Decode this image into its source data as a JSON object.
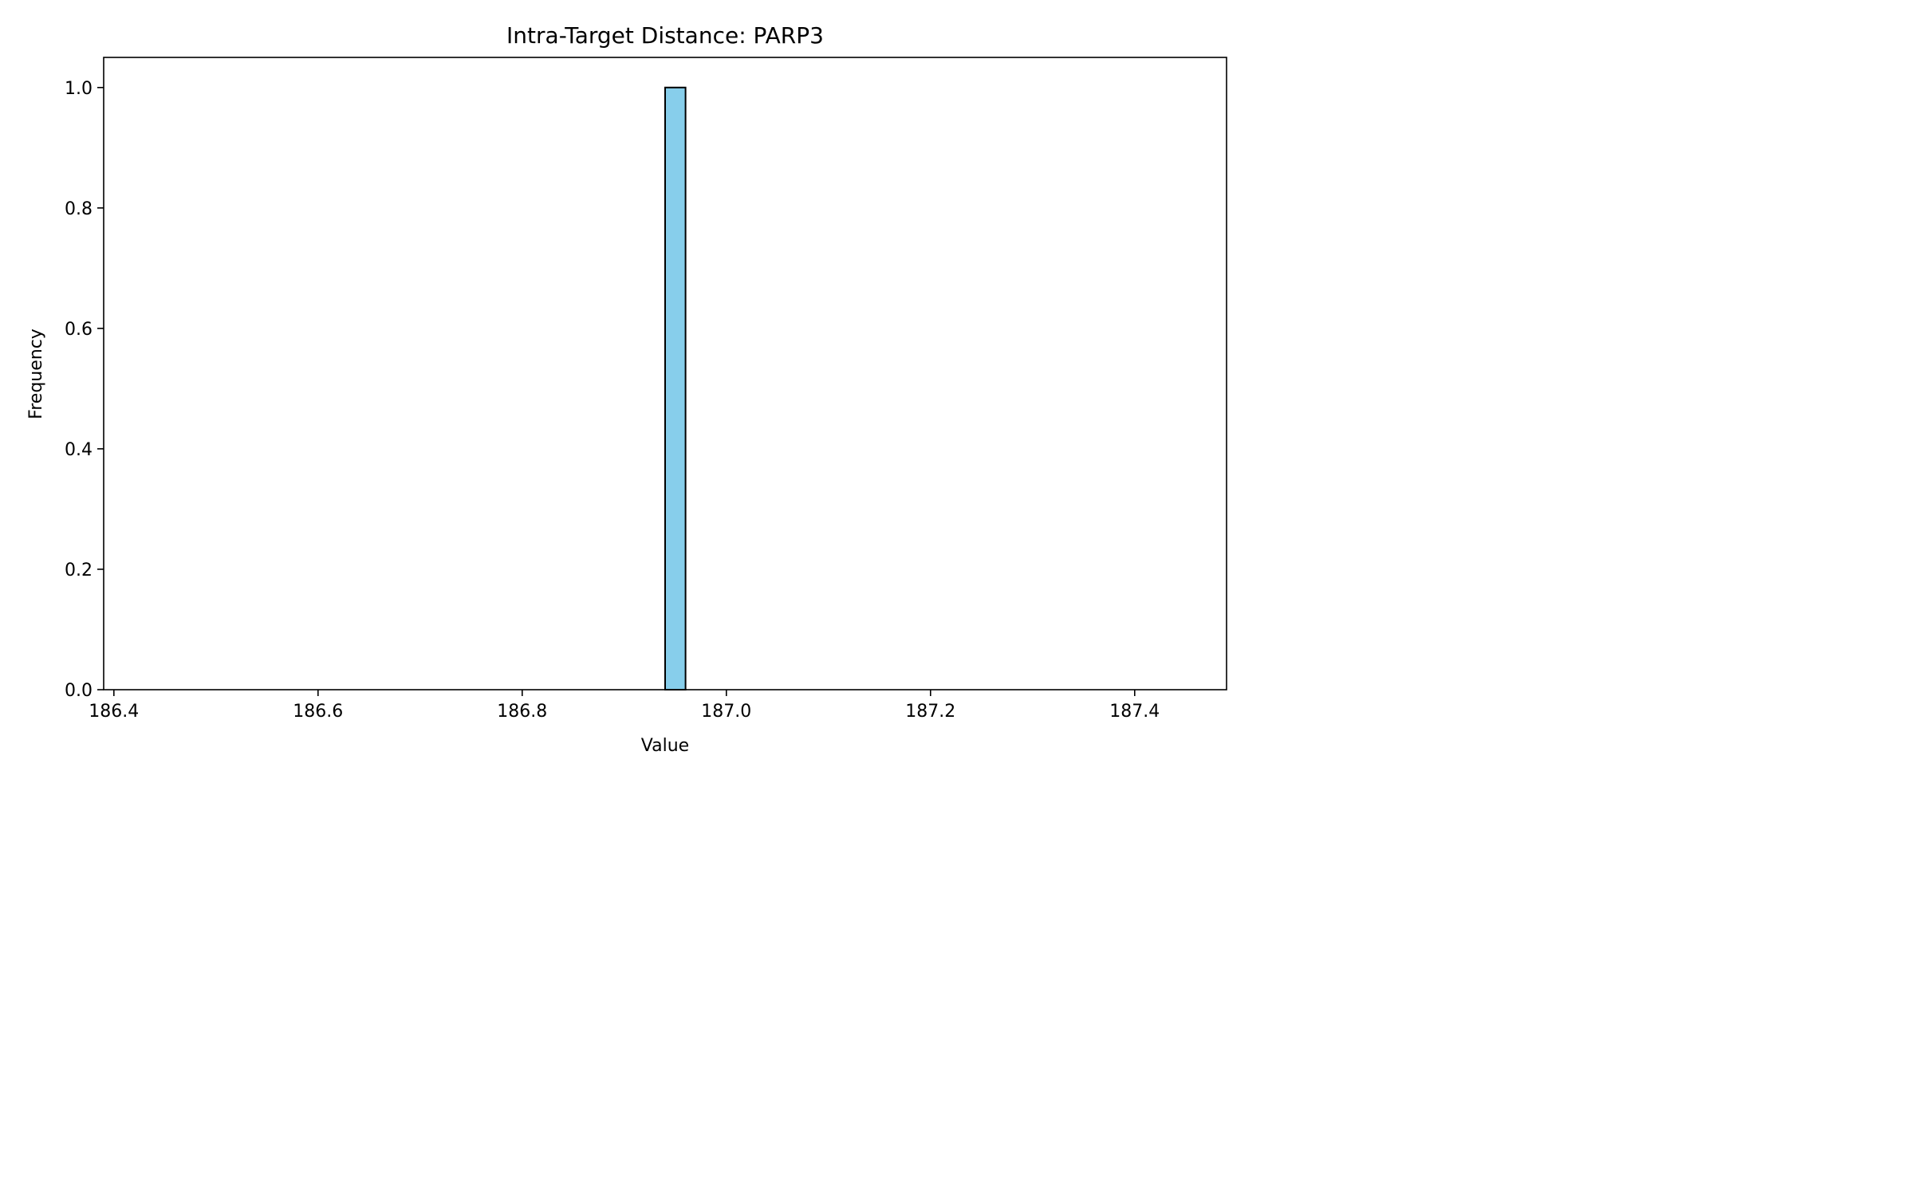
{
  "chart_data": {
    "type": "bar",
    "title": "Intra-Target Distance: PARP3",
    "xlabel": "Value",
    "ylabel": "Frequency",
    "xlim": [
      186.39,
      187.49
    ],
    "ylim": [
      0.0,
      1.05
    ],
    "xticks": [
      186.4,
      186.6,
      186.8,
      187.0,
      187.2,
      187.4
    ],
    "xtick_labels": [
      "186.4",
      "186.6",
      "186.8",
      "187.0",
      "187.2",
      "187.4"
    ],
    "yticks": [
      0.0,
      0.2,
      0.4,
      0.6,
      0.8,
      1.0
    ],
    "ytick_labels": [
      "0.0",
      "0.2",
      "0.4",
      "0.6",
      "0.8",
      "1.0"
    ],
    "bins": {
      "range": [
        186.44,
        187.44
      ],
      "count": 50,
      "width": 0.02
    },
    "values": [
      0,
      0,
      0,
      0,
      0,
      0,
      0,
      0,
      0,
      0,
      0,
      0,
      0,
      0,
      0,
      0,
      0,
      0,
      0,
      0,
      0,
      0,
      0,
      0,
      0,
      1,
      0,
      0,
      0,
      0,
      0,
      0,
      0,
      0,
      0,
      0,
      0,
      0,
      0,
      0,
      0,
      0,
      0,
      0,
      0,
      0,
      0,
      0,
      0,
      0
    ],
    "bar_color": "#87CEEB",
    "edge_color": "#000000",
    "grid": false,
    "legend": "none"
  }
}
